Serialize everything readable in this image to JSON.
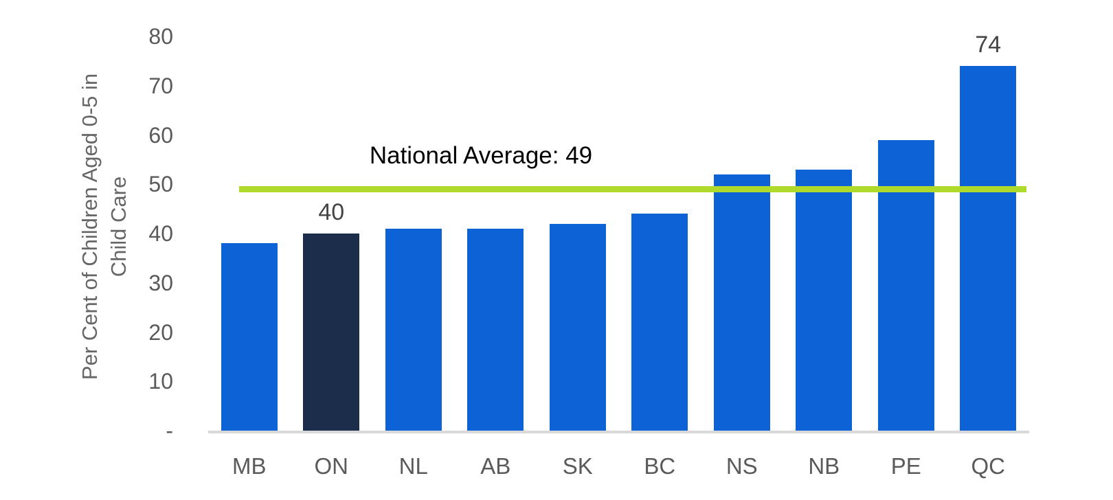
{
  "chart_data": {
    "type": "bar",
    "categories": [
      "MB",
      "ON",
      "NL",
      "AB",
      "SK",
      "BC",
      "NS",
      "NB",
      "PE",
      "QC"
    ],
    "values": [
      38,
      40,
      41,
      41,
      42,
      44,
      52,
      53,
      59,
      74
    ],
    "highlighted_category": "ON",
    "data_labels": {
      "ON": "40",
      "QC": "74"
    },
    "national_average": 49,
    "average_label": "National Average: 49",
    "title": "",
    "xlabel": "",
    "ylabel": "Per Cent of Children Aged 0-5 in Child Care",
    "ylabel_line1": "Per Cent of Children Aged 0-5 in",
    "ylabel_line2": "Child Care",
    "ylim": [
      0,
      80
    ],
    "y_ticks": [
      80,
      70,
      60,
      50,
      40,
      30,
      20,
      10
    ],
    "zero_tick_label": "-",
    "grid": false,
    "legend": "none",
    "colors": {
      "bar": "#0d63d5",
      "highlight_bar": "#1c2c4b",
      "average_line": "#afda2c",
      "axis_line": "#d9d9d9",
      "tick_text": "#5a5a5a",
      "data_label_text": "#444444",
      "average_label_text": "#000000",
      "background": "#ffffff"
    }
  }
}
